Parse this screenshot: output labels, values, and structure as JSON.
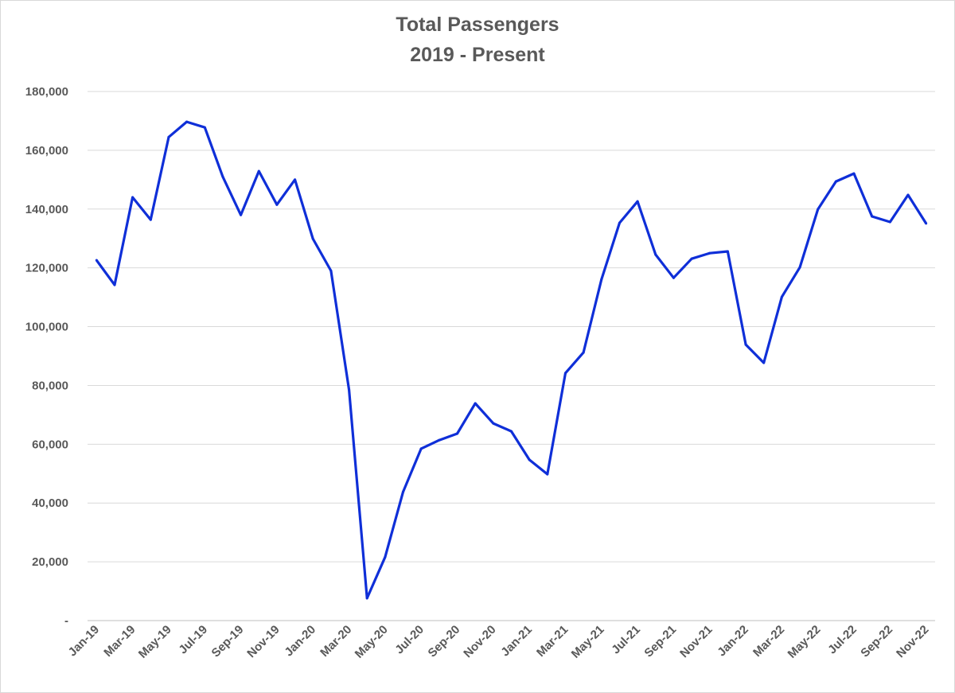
{
  "chart_data": {
    "type": "line",
    "title": "Total Passengers",
    "subtitle": "2019 - Present",
    "xlabel": "",
    "ylabel": "",
    "ylim": [
      0,
      180000
    ],
    "y_ticks": [
      0,
      20000,
      40000,
      60000,
      80000,
      100000,
      120000,
      140000,
      160000,
      180000
    ],
    "y_tick_labels": [
      "-",
      "20,000",
      "40,000",
      "60,000",
      "80,000",
      "100,000",
      "120,000",
      "140,000",
      "160,000",
      "180,000"
    ],
    "grid": true,
    "legend": "none",
    "line_color": "#0f2fd8",
    "categories": [
      "Jan-19",
      "Feb-19",
      "Mar-19",
      "Apr-19",
      "May-19",
      "Jun-19",
      "Jul-19",
      "Aug-19",
      "Sep-19",
      "Oct-19",
      "Nov-19",
      "Dec-19",
      "Jan-20",
      "Feb-20",
      "Mar-20",
      "Apr-20",
      "May-20",
      "Jun-20",
      "Jul-20",
      "Aug-20",
      "Sep-20",
      "Oct-20",
      "Nov-20",
      "Dec-20",
      "Jan-21",
      "Feb-21",
      "Mar-21",
      "Apr-21",
      "May-21",
      "Jun-21",
      "Jul-21",
      "Aug-21",
      "Sep-21",
      "Oct-21",
      "Nov-21",
      "Dec-21",
      "Jan-22",
      "Feb-22",
      "Mar-22",
      "Apr-22",
      "May-22",
      "Jun-22",
      "Jul-22",
      "Aug-22",
      "Sep-22",
      "Oct-22",
      "Nov-22"
    ],
    "x_tick_labels": [
      "Jan-19",
      "Mar-19",
      "May-19",
      "Jul-19",
      "Sep-19",
      "Nov-19",
      "Jan-20",
      "Mar-20",
      "May-20",
      "Jul-20",
      "Sep-20",
      "Nov-20",
      "Jan-21",
      "Mar-21",
      "May-21",
      "Jul-21",
      "Sep-21",
      "Nov-21",
      "Jan-22",
      "Mar-22",
      "May-22",
      "Jul-22",
      "Sep-22",
      "Nov-22"
    ],
    "values": [
      122600,
      114200,
      144000,
      136400,
      164500,
      169700,
      167800,
      151000,
      138000,
      152900,
      141500,
      150000,
      129900,
      119000,
      78500,
      7600,
      21600,
      43800,
      58500,
      61400,
      63600,
      73900,
      67100,
      64400,
      54700,
      49800,
      84200,
      91200,
      116100,
      135300,
      142600,
      124500,
      116600,
      123100,
      125000,
      125600,
      93900,
      87700,
      110100,
      120200,
      139900,
      149400,
      152100,
      137500,
      135600,
      144800,
      135100
    ]
  }
}
